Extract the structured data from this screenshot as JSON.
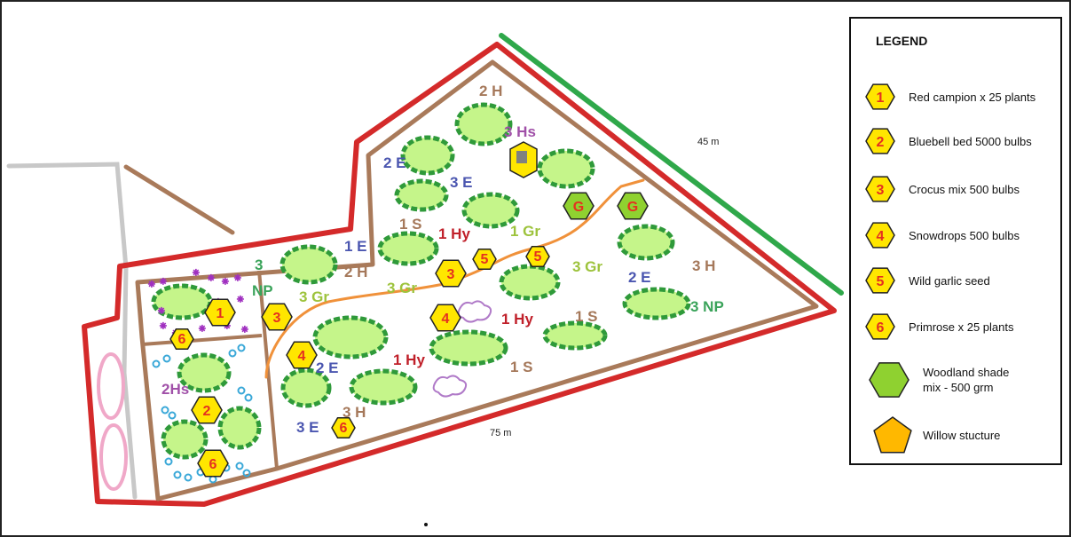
{
  "legend": {
    "title": "LEGEND",
    "items": [
      {
        "symbol": "1",
        "text": "Red campion x 25 plants"
      },
      {
        "symbol": "2",
        "text": "Bluebell bed 5000 bulbs"
      },
      {
        "symbol": "3",
        "text": "Crocus mix  500 bulbs"
      },
      {
        "symbol": "4",
        "text": "Snowdrops  500 bulbs"
      },
      {
        "symbol": "5",
        "text": "Wild garlic seed"
      },
      {
        "symbol": "6",
        "text": "Primrose  x 25 plants"
      },
      {
        "symbol": "",
        "text_lines": [
          "Woodland shade",
          "mix - 500 grm"
        ]
      },
      {
        "symbol": "",
        "text": "Willow stucture"
      }
    ]
  },
  "dimensions": {
    "top": "45 m",
    "bottom": "75 m"
  },
  "area_labels": {
    "h2_top": "2 H",
    "hs3": "3 Hs",
    "e2_top": "2 E",
    "e3_top": "3 E",
    "s1_top": "1 S",
    "hy1_top": "1 Hy",
    "gr1": "1 Gr",
    "e1": "1 E",
    "h2_mid": "2 H",
    "np3_left_a": "3",
    "np3_left_b": "NP",
    "gr3_left": "3 Gr",
    "gr3_mid": "3 Gr",
    "gr3_right": "3 Gr",
    "e2_right": "2 E",
    "h3_right": "3 H",
    "np3_right": "3 NP",
    "hy1_mid": "1 Hy",
    "s1_mid": "1 S",
    "hy1_low": "1 Hy",
    "s1_low": "1 S",
    "e2_low": "2 E",
    "h3_low": "3 H",
    "e3_low": "3 E",
    "hs2": "2Hs"
  },
  "markers": {
    "m1": "1",
    "m2": "2",
    "m3a": "3",
    "m3b": "3",
    "m4a": "4",
    "m4b": "4",
    "m5a": "5",
    "m5b": "5",
    "m6a": "6",
    "m6b": "6",
    "m6c": "6",
    "g1": "G",
    "g2": "G"
  },
  "colors": {
    "boundary_red": "#d42a2a",
    "inner_brown": "#a97a5a",
    "hedge_green": "#2fa84a",
    "path_orange": "#f0913a",
    "path_grey": "#c8c8c8",
    "marker_fill": "#ffe600",
    "marker_number": "#e53020",
    "shade_mix_green": "#8fd130",
    "willow_orange": "#ffb800",
    "tree_fill": "#c5f58a",
    "tree_edge": "#2f9a3a",
    "label_brown": "#a5785a",
    "label_blue": "#4b56b0",
    "label_red": "#c0202a",
    "label_lime": "#9dc33c",
    "label_green": "#3aa35a",
    "label_purple": "#a050a8",
    "pond_pink": "#f0a8c8"
  }
}
